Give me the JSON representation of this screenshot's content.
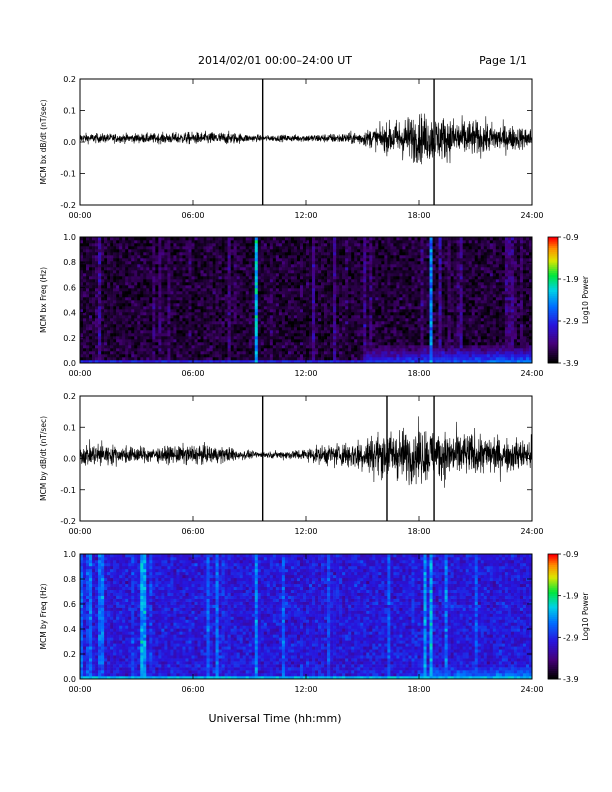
{
  "header": {
    "date_range": "2014/02/01   00:00–24:00 UT",
    "page": "Page 1/1"
  },
  "x_axis_title": "Universal Time (hh:mm)",
  "chart_data": [
    {
      "type": "line",
      "panel": "bx_dbdt",
      "ylabel": "MCM bx dB/dt (nT/sec)",
      "xlim": [
        0,
        24
      ],
      "ylim": [
        -0.2,
        0.2
      ],
      "xticks": [
        "00:00",
        "06:00",
        "12:00",
        "18:00",
        "24:00"
      ],
      "yticks": [
        "0.2",
        "0.1",
        "0.0",
        "-0.1",
        "-0.2"
      ],
      "envelope": {
        "hours": [
          0,
          2,
          4,
          6,
          8,
          9,
          10,
          12,
          14,
          15,
          16,
          17,
          18,
          19,
          20,
          21,
          22,
          23,
          24
        ],
        "amplitude": [
          0.02,
          0.018,
          0.02,
          0.025,
          0.025,
          0.015,
          0.012,
          0.015,
          0.02,
          0.03,
          0.05,
          0.08,
          0.1,
          0.09,
          0.08,
          0.07,
          0.06,
          0.05,
          0.04
        ]
      },
      "spikes": [
        {
          "hour": 9.7,
          "ymin": -0.2,
          "ymax": 0.2
        },
        {
          "hour": 18.8,
          "ymin": -0.2,
          "ymax": 0.2
        }
      ]
    },
    {
      "type": "heatmap",
      "panel": "bx_spectrogram",
      "ylabel": "MCM bx Freq (Hz)",
      "xlim": [
        0,
        24
      ],
      "ylim": [
        0,
        1.0
      ],
      "xticks": [
        "00:00",
        "06:00",
        "12:00",
        "18:00",
        "24:00"
      ],
      "yticks": [
        "1.0",
        "0.8",
        "0.6",
        "0.4",
        "0.2",
        "0.0"
      ],
      "colorbar": {
        "label": "Log10 Power",
        "ticks": [
          "-0.9",
          "-1.9",
          "-2.9",
          "-3.9"
        ],
        "range": [
          -3.9,
          -0.9
        ]
      },
      "background_level": -3.7,
      "bright_lines": [
        {
          "hour": 9.3,
          "level": -2.0
        },
        {
          "hour": 18.6,
          "level": -2.3
        }
      ],
      "low_freq_enhancement": {
        "start_hour": 15,
        "end_hour": 24,
        "max_freq": 0.15,
        "level": -2.4
      }
    },
    {
      "type": "line",
      "panel": "by_dbdt",
      "ylabel": "MCM by dB/dt (nT/sec)",
      "xlim": [
        0,
        24
      ],
      "ylim": [
        -0.2,
        0.2
      ],
      "xticks": [
        "00:00",
        "06:00",
        "12:00",
        "18:00",
        "24:00"
      ],
      "yticks": [
        "0.2",
        "0.1",
        "0.0",
        "-0.1",
        "-0.2"
      ],
      "envelope": {
        "hours": [
          0,
          1,
          2,
          4,
          6,
          8,
          9,
          10,
          12,
          13,
          14,
          15,
          16,
          17,
          18,
          19,
          20,
          21,
          22,
          23,
          24
        ],
        "amplitude": [
          0.04,
          0.05,
          0.035,
          0.03,
          0.04,
          0.03,
          0.015,
          0.012,
          0.025,
          0.04,
          0.05,
          0.07,
          0.09,
          0.1,
          0.11,
          0.1,
          0.09,
          0.085,
          0.075,
          0.065,
          0.06
        ]
      },
      "spikes": [
        {
          "hour": 9.7,
          "ymin": -0.2,
          "ymax": 0.2
        },
        {
          "hour": 16.3,
          "ymin": -0.2,
          "ymax": 0.2
        },
        {
          "hour": 18.8,
          "ymin": -0.2,
          "ymax": 0.2
        }
      ]
    },
    {
      "type": "heatmap",
      "panel": "by_spectrogram",
      "ylabel": "MCM by Freq (Hz)",
      "xlim": [
        0,
        24
      ],
      "ylim": [
        0,
        1.0
      ],
      "xticks": [
        "00:00",
        "06:00",
        "12:00",
        "18:00",
        "24:00"
      ],
      "yticks": [
        "1.0",
        "0.8",
        "0.6",
        "0.4",
        "0.2",
        "0.0"
      ],
      "colorbar": {
        "label": "Log10 Power",
        "ticks": [
          "-0.9",
          "-1.9",
          "-2.9",
          "-3.9"
        ],
        "range": [
          -3.9,
          -0.9
        ]
      },
      "background_level": -3.0,
      "bright_lines": [
        {
          "hour": 0.6,
          "level": -2.5
        },
        {
          "hour": 1.2,
          "level": -2.5
        },
        {
          "hour": 3.3,
          "level": -2.2
        },
        {
          "hour": 3.5,
          "level": -2.3
        },
        {
          "hour": 6.8,
          "level": -2.6
        },
        {
          "hour": 7.3,
          "level": -2.5
        },
        {
          "hour": 9.3,
          "level": -2.4
        },
        {
          "hour": 18.3,
          "level": -2.3
        },
        {
          "hour": 18.7,
          "level": -2.2
        },
        {
          "hour": 19.4,
          "level": -2.5
        },
        {
          "hour": 21.0,
          "level": -2.6
        }
      ],
      "low_freq_enhancement": {
        "start_hour": 18,
        "end_hour": 24,
        "max_freq": 0.1,
        "level": -2.3
      }
    }
  ]
}
